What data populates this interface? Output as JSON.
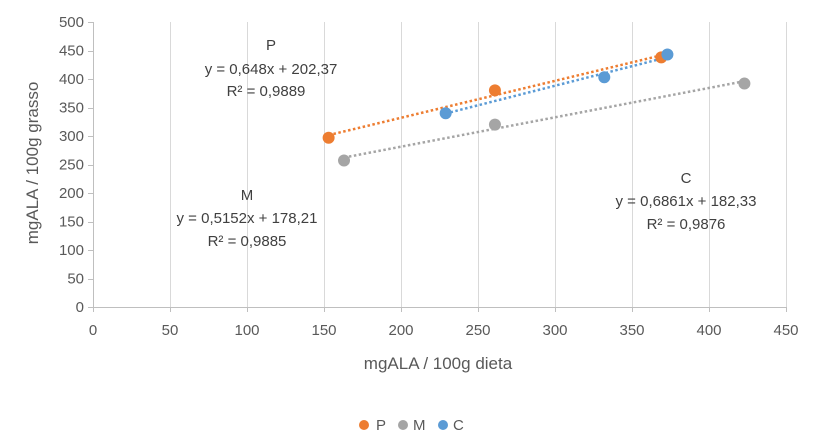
{
  "chart_data": {
    "type": "scatter",
    "xlabel": "mgALA / 100g dieta",
    "ylabel": "mgALA / 100g grasso",
    "xlim": [
      0,
      450
    ],
    "ylim": [
      0,
      500
    ],
    "xticks": [
      0,
      50,
      100,
      150,
      200,
      250,
      300,
      350,
      400,
      450
    ],
    "yticks": [
      0,
      50,
      100,
      150,
      200,
      250,
      300,
      350,
      400,
      450,
      500
    ],
    "grid": "vertical",
    "legend_position": "bottom",
    "series": [
      {
        "name": "P",
        "color": "#ED7D31",
        "points": [
          [
            153,
            297
          ],
          [
            261,
            380
          ],
          [
            369,
            438
          ]
        ],
        "trendline": {
          "slope": 0.648,
          "intercept": 202.37,
          "x_range": [
            153,
            369
          ],
          "label": "P",
          "equation": "y = 0,648x + 202,37",
          "r2": "R² = 0,9889"
        }
      },
      {
        "name": "M",
        "color": "#A5A5A5",
        "points": [
          [
            163,
            257
          ],
          [
            261,
            320
          ],
          [
            423,
            392
          ]
        ],
        "trendline": {
          "slope": 0.5152,
          "intercept": 178.21,
          "x_range": [
            163,
            423
          ],
          "label": "M",
          "equation": "y = 0,5152x + 178,21",
          "r2": "R² = 0,9885"
        }
      },
      {
        "name": "C",
        "color": "#5B9BD5",
        "points": [
          [
            229,
            340
          ],
          [
            332,
            403
          ],
          [
            373,
            443
          ]
        ],
        "trendline": {
          "slope": 0.6861,
          "intercept": 182.33,
          "x_range": [
            229,
            373
          ],
          "label": "C",
          "equation": "y = 0,6861x + 182,33",
          "r2": "R² = 0,9876"
        }
      }
    ]
  }
}
